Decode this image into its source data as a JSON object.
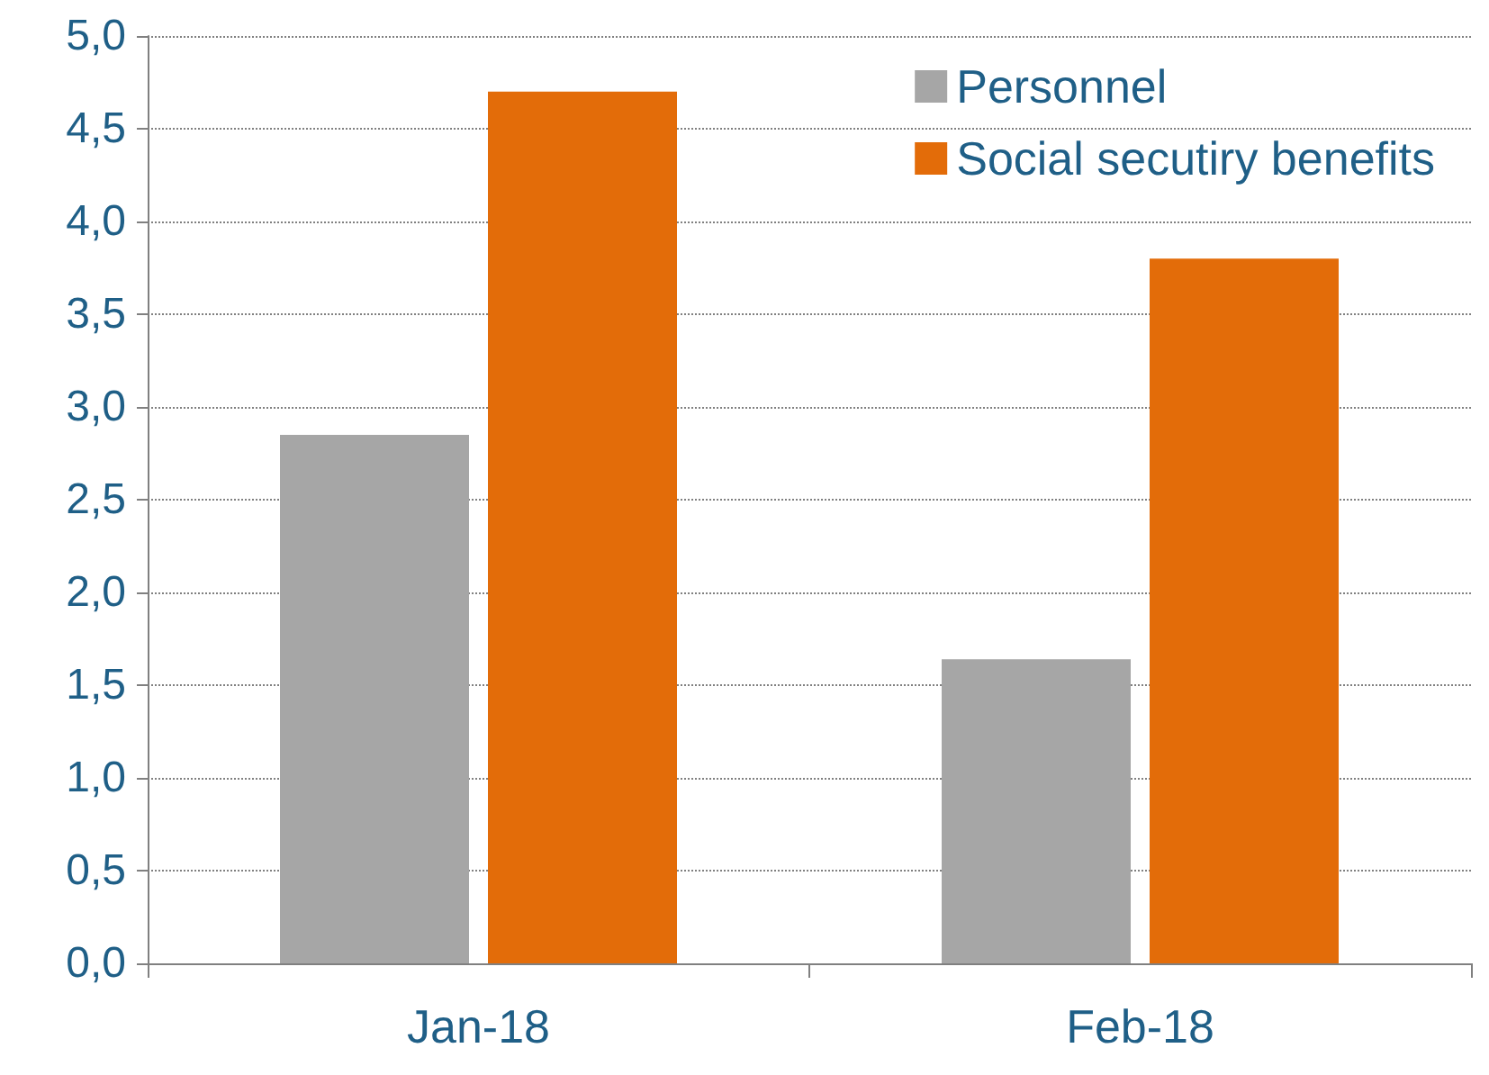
{
  "chart_data": {
    "type": "bar",
    "categories": [
      "Jan-18",
      "Feb-18"
    ],
    "series": [
      {
        "name": "Personnel",
        "color": "#a6a6a6",
        "values": [
          2.85,
          1.64
        ]
      },
      {
        "name": "Social secutiry benefits",
        "color": "#e36c09",
        "values": [
          4.7,
          3.8
        ]
      }
    ],
    "ylim": [
      0,
      5
    ],
    "yticks": [
      {
        "value": 0,
        "label": "0,0"
      },
      {
        "value": 0.5,
        "label": "0,5"
      },
      {
        "value": 1,
        "label": "1,0"
      },
      {
        "value": 1.5,
        "label": "1,5"
      },
      {
        "value": 2,
        "label": "2,0"
      },
      {
        "value": 2.5,
        "label": "2,5"
      },
      {
        "value": 3,
        "label": "3,0"
      },
      {
        "value": 3.5,
        "label": "3,5"
      },
      {
        "value": 4,
        "label": "4,0"
      },
      {
        "value": 4.5,
        "label": "4,5"
      },
      {
        "value": 5,
        "label": "5,0"
      }
    ],
    "grid": "y",
    "legend": "top right"
  }
}
